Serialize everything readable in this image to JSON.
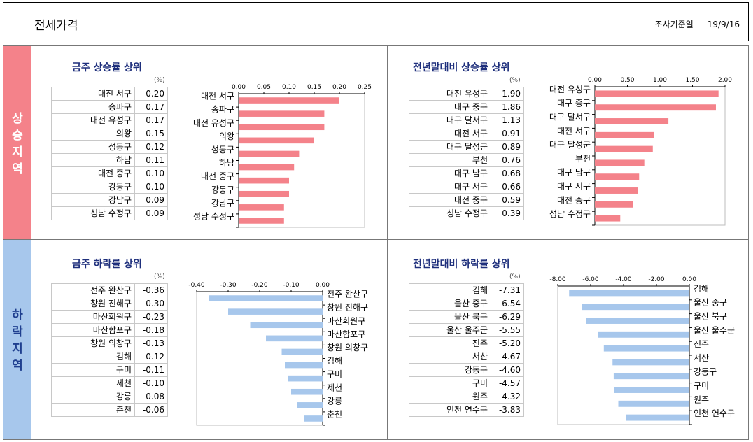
{
  "header": {
    "title": "전세가격",
    "date_label": "조사기준일",
    "date_value": "19/9/16"
  },
  "side": {
    "rise_label": "상승지역",
    "fall_label": "하락지역"
  },
  "panels": {
    "weekly_rise": {
      "title": "금주 상승률 상위",
      "unit": "(%)",
      "rows": [
        {
          "name": "대전 서구",
          "value": "0.20"
        },
        {
          "name": "송파구",
          "value": "0.17"
        },
        {
          "name": "대전 유성구",
          "value": "0.17"
        },
        {
          "name": "의왕",
          "value": "0.15"
        },
        {
          "name": "성동구",
          "value": "0.12"
        },
        {
          "name": "하남",
          "value": "0.11"
        },
        {
          "name": "대전 중구",
          "value": "0.10"
        },
        {
          "name": "강동구",
          "value": "0.10"
        },
        {
          "name": "강남구",
          "value": "0.09"
        },
        {
          "name": "성남 수정구",
          "value": "0.09"
        }
      ]
    },
    "ytd_rise": {
      "title": "전년말대비 상승률 상위",
      "unit": "(%)",
      "rows": [
        {
          "name": "대전 유성구",
          "value": "1.90"
        },
        {
          "name": "대구 중구",
          "value": "1.86"
        },
        {
          "name": "대구 달서구",
          "value": "1.13"
        },
        {
          "name": "대전 서구",
          "value": "0.91"
        },
        {
          "name": "대구 달성군",
          "value": "0.89"
        },
        {
          "name": "부천",
          "value": "0.76"
        },
        {
          "name": "대구 남구",
          "value": "0.68"
        },
        {
          "name": "대구 서구",
          "value": "0.66"
        },
        {
          "name": "대전 중구",
          "value": "0.59"
        },
        {
          "name": "성남 수정구",
          "value": "0.39"
        }
      ]
    },
    "weekly_fall": {
      "title": "금주 하락률 상위",
      "unit": "(%)",
      "rows": [
        {
          "name": "전주 완산구",
          "value": "-0.36"
        },
        {
          "name": "창원 진해구",
          "value": "-0.30"
        },
        {
          "name": "마산회원구",
          "value": "-0.23"
        },
        {
          "name": "마산합포구",
          "value": "-0.18"
        },
        {
          "name": "창원 의창구",
          "value": "-0.13"
        },
        {
          "name": "김해",
          "value": "-0.12"
        },
        {
          "name": "구미",
          "value": "-0.11"
        },
        {
          "name": "제천",
          "value": "-0.10"
        },
        {
          "name": "강릉",
          "value": "-0.08"
        },
        {
          "name": "춘천",
          "value": "-0.06"
        }
      ]
    },
    "ytd_fall": {
      "title": "전년말대비 하락률 상위",
      "unit": "(%)",
      "rows": [
        {
          "name": "김해",
          "value": "-7.31"
        },
        {
          "name": "울산 중구",
          "value": "-6.54"
        },
        {
          "name": "울산 북구",
          "value": "-6.29"
        },
        {
          "name": "울산 울주군",
          "value": "-5.55"
        },
        {
          "name": "진주",
          "value": "-5.20"
        },
        {
          "name": "서산",
          "value": "-4.67"
        },
        {
          "name": "강동구",
          "value": "-4.60"
        },
        {
          "name": "구미",
          "value": "-4.57"
        },
        {
          "name": "원주",
          "value": "-4.32"
        },
        {
          "name": "인천 연수구",
          "value": "-3.83"
        }
      ]
    }
  },
  "colors": {
    "rise_bar": "#f4828a",
    "fall_bar": "#a7c7ec",
    "title": "#1e2f7c"
  },
  "chart_data": [
    {
      "type": "bar",
      "orientation": "horizontal",
      "categories": [
        "대전 서구",
        "송파구",
        "대전 유성구",
        "의왕",
        "성동구",
        "하남",
        "대전 중구",
        "강동구",
        "강남구",
        "성남 수정구"
      ],
      "values": [
        0.2,
        0.17,
        0.17,
        0.15,
        0.12,
        0.11,
        0.1,
        0.1,
        0.09,
        0.09
      ],
      "xlim": [
        0,
        0.25
      ],
      "ticks": [
        "0.00",
        "0.05",
        "0.10",
        "0.15",
        "0.20",
        "0.25"
      ]
    },
    {
      "type": "bar",
      "orientation": "horizontal",
      "categories": [
        "대전 유성구",
        "대구 중구",
        "대구 달서구",
        "대전 서구",
        "대구 달성군",
        "부천",
        "대구 남구",
        "대구 서구",
        "대전 중구",
        "성남 수정구"
      ],
      "values": [
        1.9,
        1.86,
        1.13,
        0.91,
        0.89,
        0.76,
        0.68,
        0.66,
        0.59,
        0.39
      ],
      "xlim": [
        0,
        2.0
      ],
      "ticks": [
        "0.00",
        "0.50",
        "1.00",
        "1.50",
        "2.00"
      ]
    },
    {
      "type": "bar",
      "orientation": "horizontal",
      "categories": [
        "전주 완산구",
        "창원 진해구",
        "마산회원구",
        "마산합포구",
        "창원 의창구",
        "김해",
        "구미",
        "제천",
        "강릉",
        "춘천"
      ],
      "values": [
        -0.36,
        -0.3,
        -0.23,
        -0.18,
        -0.13,
        -0.12,
        -0.11,
        -0.1,
        -0.08,
        -0.06
      ],
      "xlim": [
        -0.4,
        0
      ],
      "ticks": [
        "-0.40",
        "-0.30",
        "-0.20",
        "-0.10",
        "0.00"
      ]
    },
    {
      "type": "bar",
      "orientation": "horizontal",
      "categories": [
        "김해",
        "울산 중구",
        "울산 북구",
        "울산 울주군",
        "진주",
        "서산",
        "강동구",
        "구미",
        "원주",
        "인천 연수구"
      ],
      "values": [
        -7.31,
        -6.54,
        -6.29,
        -5.55,
        -5.2,
        -4.67,
        -4.6,
        -4.57,
        -4.32,
        -3.83
      ],
      "xlim": [
        -8,
        0
      ],
      "ticks": [
        "-8.00",
        "-6.00",
        "-4.00",
        "-2.00",
        "0.00"
      ]
    }
  ]
}
